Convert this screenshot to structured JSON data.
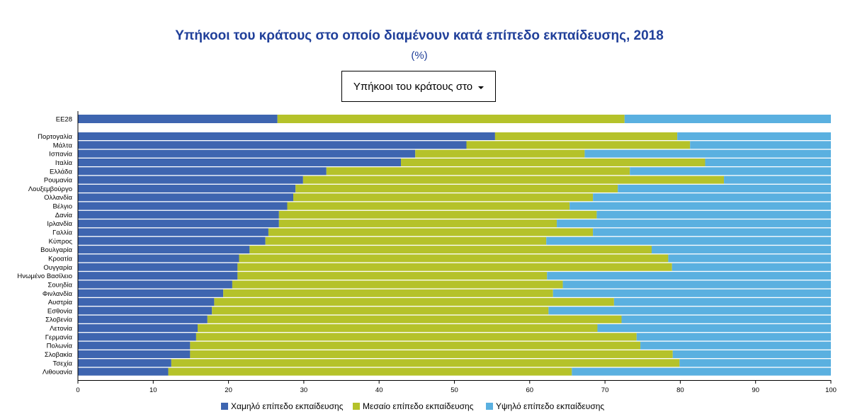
{
  "header": {
    "title": "Υπήκοοι του κράτους στο οποίο διαμένουν κατά επίπεδο εκπαίδευσης, 2018",
    "subtitle": "(%)"
  },
  "dropdown": {
    "selected": "Υπήκοοι του κράτους στο"
  },
  "colors": {
    "low": "#3e65b0",
    "medium": "#b5c22a",
    "high": "#5ab0e0",
    "title": "#21409a"
  },
  "chart_data": {
    "type": "bar",
    "orientation": "horizontal",
    "stacked": true,
    "title": "Υπήκοοι του κράτους στο οποίο διαμένουν κατά επίπεδο εκπαίδευσης, 2018",
    "subtitle": "(%)",
    "xlim": [
      0,
      100
    ],
    "xticks": [
      "0",
      "10",
      "20",
      "30",
      "40",
      "50",
      "60",
      "70",
      "80",
      "90",
      "100"
    ],
    "legend_position": "bottom",
    "categories": [
      "ΕΕ28",
      "Πορτογαλία",
      "Μάλτα",
      "Ισπανία",
      "Ιταλία",
      "Ελλάδα",
      "Ρουμανία",
      "Λουξεμβούργο",
      "Ολλανδία",
      "Βέλγιο",
      "Δανία",
      "Ιρλανδία",
      "Γαλλία",
      "Κύπρος",
      "Βουλγαρία",
      "Κροατία",
      "Ουγγαρία",
      "Ηνωμένο Βασίλειο",
      "Σουηδία",
      "Φινλανδία",
      "Αυστρία",
      "Εσθονία",
      "Σλοβενία",
      "Λετονία",
      "Γερμανία",
      "Πολωνία",
      "Σλοβακία",
      "Τσεχία",
      "Λιθουανία"
    ],
    "series": [
      {
        "name": "Χαμηλό επίπεδο εκπαίδευσης",
        "values": [
          26.5,
          55.4,
          51.6,
          44.8,
          42.9,
          33.0,
          29.9,
          28.9,
          28.6,
          27.8,
          26.7,
          26.7,
          25.3,
          24.9,
          22.8,
          21.4,
          21.2,
          21.2,
          20.5,
          19.3,
          18.1,
          17.8,
          17.2,
          15.9,
          15.7,
          14.9,
          14.9,
          12.4,
          12.0
        ]
      },
      {
        "name": "Μεσαίο επίπεδο εκπαίδευσης",
        "values": [
          46.1,
          24.2,
          29.7,
          22.5,
          40.4,
          40.3,
          55.9,
          42.8,
          39.8,
          37.5,
          42.2,
          36.9,
          43.1,
          37.3,
          53.4,
          57.0,
          57.7,
          41.1,
          43.9,
          43.8,
          53.1,
          44.7,
          55.0,
          53.1,
          58.5,
          59.8,
          64.1,
          67.5,
          53.6
        ]
      },
      {
        "name": "Υψηλό επίπεδο εκπαίδευσης",
        "values": [
          27.4,
          20.4,
          18.7,
          32.7,
          16.7,
          26.7,
          14.2,
          28.3,
          31.6,
          34.7,
          31.1,
          36.4,
          31.6,
          37.8,
          23.8,
          21.6,
          21.1,
          37.7,
          35.6,
          36.9,
          28.8,
          37.5,
          27.8,
          31.0,
          25.8,
          25.3,
          21.0,
          20.1,
          34.4
        ]
      }
    ]
  }
}
